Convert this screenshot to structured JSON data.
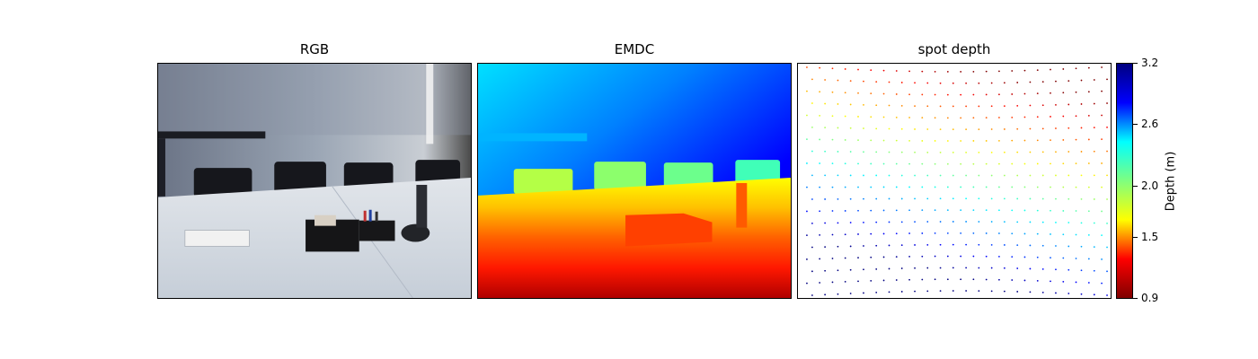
{
  "chart_data": [
    {
      "type": "heatmap",
      "title": "RGB"
    },
    {
      "type": "heatmap",
      "title": "EMDC",
      "colormap": "jet"
    },
    {
      "type": "scatter",
      "title": "spot depth",
      "colormap": "jet"
    }
  ],
  "colorbar": {
    "label": "Depth (m)",
    "range": [
      0.9,
      3.2
    ],
    "colormap": "jet",
    "ticks": [
      {
        "value": 3.2,
        "label": "3.2"
      },
      {
        "value": 2.6,
        "label": "2.6"
      },
      {
        "value": 2.0,
        "label": "2.0"
      },
      {
        "value": 1.5,
        "label": "1.5"
      },
      {
        "value": 0.9,
        "label": "0.9"
      }
    ]
  },
  "colors": {
    "jet_stops": [
      "#000080",
      "#0000ff",
      "#00ffff",
      "#7fff7f",
      "#ffff00",
      "#ff0000",
      "#800000"
    ]
  }
}
